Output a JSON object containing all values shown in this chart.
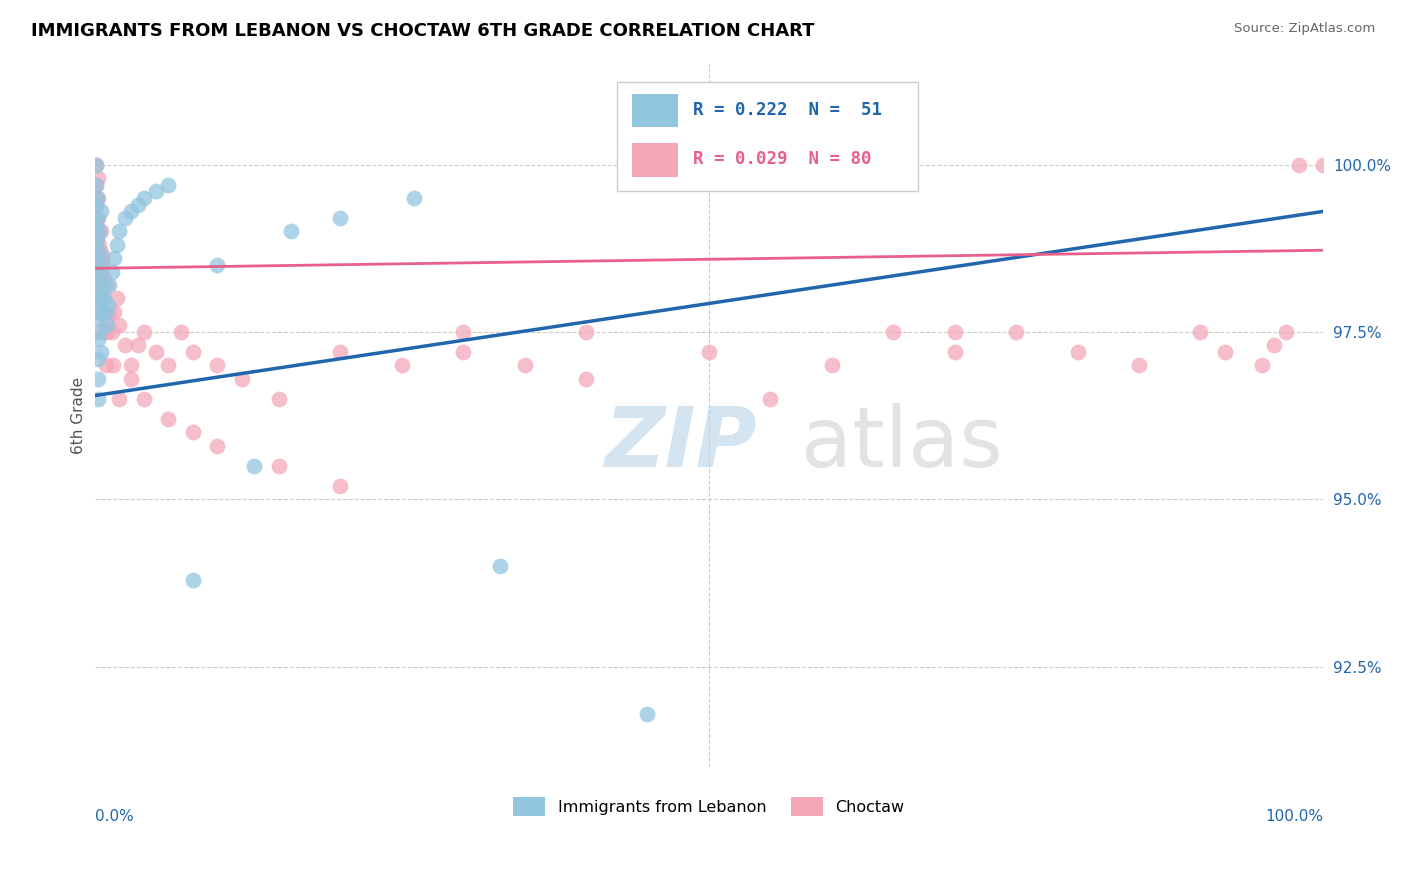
{
  "title": "IMMIGRANTS FROM LEBANON VS CHOCTAW 6TH GRADE CORRELATION CHART",
  "source": "Source: ZipAtlas.com",
  "ylabel": "6th Grade",
  "xlim": [
    0.0,
    1.0
  ],
  "ylim": [
    91.0,
    101.5
  ],
  "ytick_positions": [
    92.5,
    95.0,
    97.5,
    100.0
  ],
  "ytick_labels": [
    "92.5%",
    "95.0%",
    "97.5%",
    "100.0%"
  ],
  "legend_blue_label": "R = 0.222  N =  51",
  "legend_pink_label": "R = 0.029  N = 80",
  "blue_color": "#92c5de",
  "pink_color": "#f4a7b9",
  "blue_line_color": "#2166ac",
  "pink_line_color": "#d6604d",
  "blue_trend_x0": 0.0,
  "blue_trend_x1": 1.0,
  "blue_trend_y0": 96.55,
  "blue_trend_y1": 99.3,
  "pink_trend_x0": 0.0,
  "pink_trend_x1": 1.0,
  "pink_trend_y0": 98.45,
  "pink_trend_y1": 98.72,
  "blue_x": [
    0.001,
    0.001,
    0.001,
    0.001,
    0.001,
    0.002,
    0.002,
    0.002,
    0.002,
    0.003,
    0.003,
    0.003,
    0.003,
    0.003,
    0.003,
    0.003,
    0.004,
    0.004,
    0.004,
    0.004,
    0.004,
    0.004,
    0.005,
    0.005,
    0.005,
    0.006,
    0.006,
    0.007,
    0.008,
    0.009,
    0.01,
    0.011,
    0.012,
    0.014,
    0.016,
    0.018,
    0.02,
    0.025,
    0.03,
    0.035,
    0.04,
    0.05,
    0.06,
    0.08,
    0.1,
    0.13,
    0.16,
    0.2,
    0.26,
    0.33,
    0.45
  ],
  "blue_y": [
    100.0,
    99.7,
    99.4,
    99.1,
    98.8,
    99.5,
    99.2,
    98.9,
    98.6,
    98.3,
    98.0,
    97.7,
    97.4,
    97.1,
    96.8,
    96.5,
    99.0,
    98.7,
    98.4,
    98.1,
    97.8,
    97.5,
    99.3,
    98.0,
    97.2,
    98.5,
    97.8,
    98.2,
    98.0,
    97.8,
    97.6,
    97.9,
    98.2,
    98.4,
    98.6,
    98.8,
    99.0,
    99.2,
    99.3,
    99.4,
    99.5,
    99.6,
    99.7,
    93.8,
    98.5,
    95.5,
    99.0,
    99.2,
    99.5,
    94.0,
    91.8
  ],
  "pink_x": [
    0.001,
    0.001,
    0.001,
    0.001,
    0.002,
    0.002,
    0.002,
    0.002,
    0.002,
    0.003,
    0.003,
    0.003,
    0.003,
    0.003,
    0.004,
    0.004,
    0.004,
    0.004,
    0.005,
    0.005,
    0.005,
    0.006,
    0.007,
    0.008,
    0.009,
    0.01,
    0.012,
    0.014,
    0.016,
    0.018,
    0.02,
    0.025,
    0.03,
    0.035,
    0.04,
    0.05,
    0.06,
    0.07,
    0.08,
    0.1,
    0.12,
    0.15,
    0.2,
    0.25,
    0.3,
    0.35,
    0.4,
    0.5,
    0.6,
    0.65,
    0.7,
    0.75,
    0.8,
    0.85,
    0.9,
    0.92,
    0.95,
    0.96,
    0.97,
    0.98,
    0.005,
    0.006,
    0.007,
    0.008,
    0.009,
    0.01,
    0.015,
    0.02,
    0.03,
    0.04,
    0.06,
    0.08,
    0.1,
    0.15,
    0.2,
    0.3,
    0.4,
    0.55,
    0.7,
    1.0
  ],
  "pink_y": [
    100.0,
    99.7,
    99.4,
    99.1,
    99.5,
    99.2,
    98.9,
    98.6,
    98.3,
    98.0,
    99.8,
    99.5,
    99.2,
    98.5,
    98.8,
    99.0,
    98.5,
    98.2,
    98.7,
    98.4,
    97.8,
    98.6,
    98.3,
    98.0,
    97.7,
    98.2,
    97.8,
    97.5,
    97.8,
    98.0,
    97.6,
    97.3,
    97.0,
    97.3,
    97.5,
    97.2,
    97.0,
    97.5,
    97.2,
    97.0,
    96.8,
    96.5,
    97.2,
    97.0,
    97.5,
    97.0,
    97.5,
    97.2,
    97.0,
    97.5,
    97.2,
    97.5,
    97.2,
    97.0,
    97.5,
    97.2,
    97.0,
    97.3,
    97.5,
    100.0,
    99.0,
    98.5,
    98.0,
    97.5,
    97.0,
    97.5,
    97.0,
    96.5,
    96.8,
    96.5,
    96.2,
    96.0,
    95.8,
    95.5,
    95.2,
    97.2,
    96.8,
    96.5,
    97.5,
    100.0
  ]
}
